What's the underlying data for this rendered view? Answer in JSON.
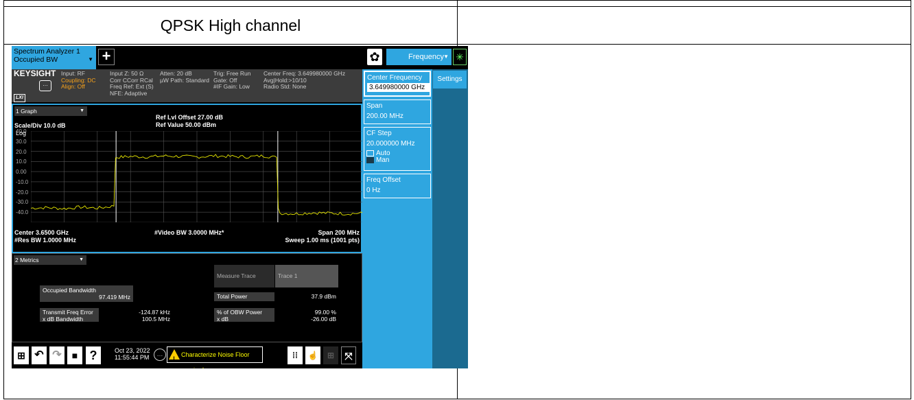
{
  "document": {
    "title": "QPSK High channel"
  },
  "tab": {
    "name_line1": "Spectrum Analyzer 1",
    "name_line2": "Occupied BW",
    "plus": "+"
  },
  "mode_select": {
    "label": "Frequency"
  },
  "status": {
    "brand": "KEYSIGHT",
    "input": "Input: RF",
    "coupling": "Coupling: DC",
    "align": "Align: Off",
    "lxi": "LXI",
    "col2": [
      "Input Z: 50 Ω",
      "Corr CCorr RCal",
      "Freq Ref: Ext (S)",
      "NFE: Adaptive"
    ],
    "col3": [
      "Atten: 20 dB",
      "µW Path: Standard"
    ],
    "col4": [
      "Trig: Free Run",
      "Gate: Off",
      "#IF Gain: Low"
    ],
    "col5": [
      "Center Freq: 3.649980000 GHz",
      "Avg|Hold:>10/10",
      "Radio Std: None"
    ]
  },
  "graph": {
    "selector": "1 Graph",
    "ref_offset": "Ref Lvl Offset 27.00 dB",
    "ref_value": "Ref Value 50.00 dBm",
    "scale": "Scale/Div 10.0 dB",
    "log": "Log",
    "center": "Center 3.6500 GHz",
    "res_bw": "#Res BW 1.0000 MHz",
    "video_bw": "#Video BW 3.0000 MHz*",
    "span": "Span 200 MHz",
    "sweep": "Sweep 1.00 ms (1001 pts)"
  },
  "chart_data": {
    "type": "line",
    "title": "",
    "xlabel": "",
    "ylabel": "",
    "y_ticks": [
      "40.0",
      "30.0",
      "20.0",
      "10.0",
      "0.00",
      "-10.0",
      "-20.0",
      "-30.0",
      "-40.0"
    ],
    "ylim": [
      -45,
      50
    ],
    "xlim": [
      3550,
      3750
    ],
    "grid": true,
    "trace_color": "#e8e800",
    "series": [
      {
        "x": [
          3550,
          3560,
          3570,
          3580,
          3590,
          3600,
          3601,
          3610,
          3620,
          3630,
          3640,
          3650,
          3660,
          3670,
          3680,
          3690,
          3698,
          3699,
          3700,
          3710,
          3720,
          3730,
          3740,
          3750
        ],
        "values": [
          -31,
          -30.5,
          -31.5,
          -30,
          -31,
          -29,
          19,
          20,
          19.5,
          20.5,
          20,
          19.5,
          20.5,
          20,
          19.5,
          20.5,
          19,
          -30,
          -36,
          -36.5,
          -35.5,
          -36,
          -36.5,
          -36
        ]
      }
    ],
    "obw_markers_x": [
      3601.3,
      3698.7
    ]
  },
  "metrics": {
    "selector": "2 Metrics",
    "obw_label": "Occupied Bandwidth",
    "obw_value": "97.419 MHz",
    "tfe_label": "Transmit Freq Error",
    "tfe_value": "-124.87 kHz",
    "xdb_bw_label": "x dB Bandwidth",
    "xdb_bw_value": "100.5 MHz",
    "measure_trace_label": "Measure Trace",
    "measure_trace_value": "Trace 1",
    "total_power_label": "Total Power",
    "total_power_value": "37.9 dBm",
    "obw_power_label": "% of OBW Power",
    "obw_power_value": "99.00 %",
    "xdb_label": "x dB",
    "xdb_value": "-26.00 dB"
  },
  "taskbar": {
    "date": "Oct 23, 2022",
    "time": "11:55:44 PM",
    "warning": "Characterize Noise Floor required"
  },
  "panel": {
    "settings_tab": "Settings",
    "center_freq_label": "Center Frequency",
    "center_freq_value": "3.649980000 GHz",
    "span_label": "Span",
    "span_value": "200.00 MHz",
    "cf_step_label": "CF Step",
    "cf_step_value": "20.000000 MHz",
    "auto": "Auto",
    "man": "Man",
    "freq_offset_label": "Freq Offset",
    "freq_offset_value": "0 Hz"
  }
}
